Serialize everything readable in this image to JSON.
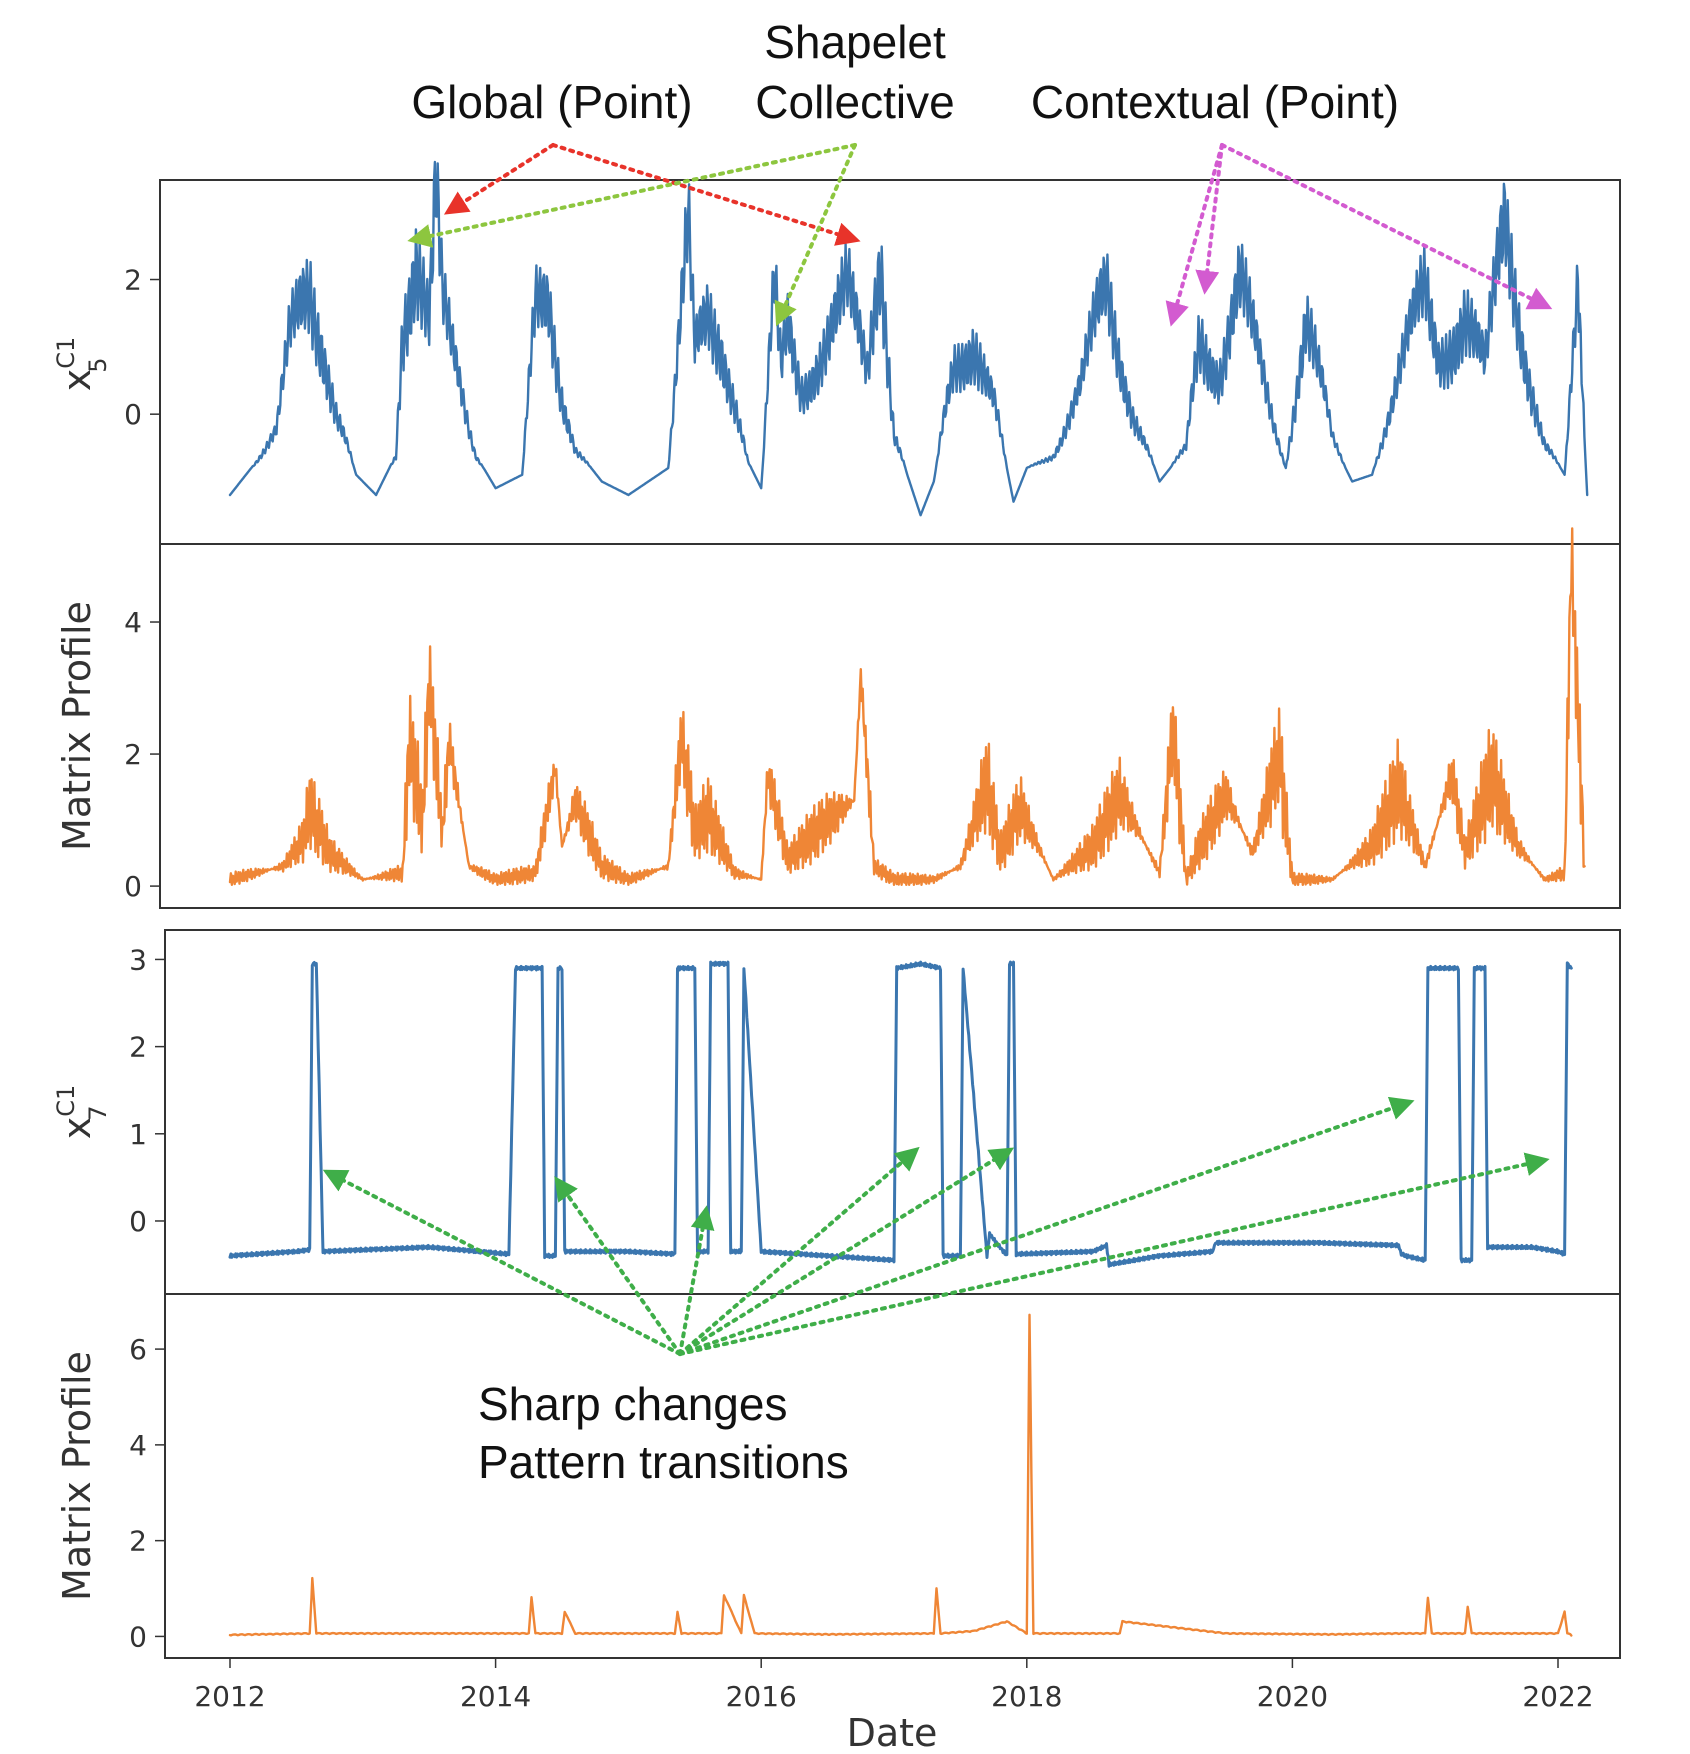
{
  "chart_data": [
    {
      "type": "line",
      "panel": "x5",
      "ylabel": "x_5^{C1}",
      "ylabel_base": "x",
      "ylabel_sub": "5",
      "ylabel_sup": "C1",
      "yticks": [
        0,
        2
      ],
      "ylim": [
        -1.75,
        3.3
      ],
      "xlim": [
        2011.35,
        2022.9
      ],
      "color": "#3b76af",
      "grid": false,
      "description": "seasonal oscillating series with spikes",
      "series": [
        {
          "x": [
            2012.0,
            2012.2,
            2012.35,
            2012.45,
            2012.6,
            2012.7,
            2012.8,
            2012.95,
            2013.1,
            2013.25,
            2013.3,
            2013.4,
            2013.5,
            2013.55,
            2013.6,
            2013.7,
            2013.85,
            2014.0,
            2014.2,
            2014.3,
            2014.4,
            2014.5,
            2014.6,
            2014.8,
            2015.0,
            2015.3,
            2015.45,
            2015.5,
            2015.6,
            2015.7,
            2015.8,
            2015.9,
            2016.0,
            2016.1,
            2016.15,
            2016.2,
            2016.3,
            2016.5,
            2016.65,
            2016.8,
            2016.9,
            2017.0,
            2017.1,
            2017.2,
            2017.3,
            2017.45,
            2017.6,
            2017.75,
            2017.9,
            2018.0,
            2018.2,
            2018.4,
            2018.6,
            2018.8,
            2019.0,
            2019.2,
            2019.3,
            2019.45,
            2019.6,
            2019.8,
            2019.95,
            2020.1,
            2020.3,
            2020.45,
            2020.6,
            2020.8,
            2021.0,
            2021.1,
            2021.3,
            2021.45,
            2021.6,
            2021.75,
            2021.9,
            2022.05,
            2022.15,
            2022.22
          ],
          "y": [
            -1.2,
            -0.7,
            -0.3,
            1.0,
            2.0,
            1.2,
            0.1,
            -0.9,
            -1.2,
            -0.6,
            1.6,
            2.6,
            1.3,
            3.0,
            1.4,
            0.6,
            -0.6,
            -1.1,
            -0.9,
            1.4,
            1.7,
            0.4,
            -0.5,
            -1.0,
            -1.2,
            -0.8,
            2.4,
            0.8,
            1.5,
            1.2,
            0.3,
            -0.7,
            -1.1,
            1.7,
            0.6,
            1.4,
            0.5,
            1.1,
            1.6,
            0.6,
            2.7,
            -0.2,
            -0.9,
            -1.5,
            -1.0,
            0.8,
            1.3,
            0.2,
            -1.3,
            -0.8,
            -0.6,
            0.3,
            1.8,
            0.1,
            -1.0,
            -0.5,
            1.4,
            0.7,
            1.8,
            0.3,
            -0.8,
            1.6,
            -0.4,
            -1.0,
            -0.9,
            0.5,
            1.7,
            0.9,
            1.7,
            0.6,
            2.5,
            1.0,
            -0.4,
            -0.9,
            1.5,
            -1.2
          ]
        }
      ]
    },
    {
      "type": "line",
      "panel": "mp1",
      "ylabel": "Matrix Profile",
      "yticks": [
        0,
        2,
        4
      ],
      "ylim": [
        -0.15,
        5.0
      ],
      "xlim": [
        2011.35,
        2022.9
      ],
      "color": "#ef8636",
      "grid": false,
      "description": "matrix profile with peaks",
      "series": [
        {
          "x": [
            2012.0,
            2012.4,
            2012.55,
            2012.6,
            2012.75,
            2013.0,
            2013.3,
            2013.35,
            2013.45,
            2013.5,
            2013.6,
            2013.65,
            2013.8,
            2014.0,
            2014.3,
            2014.45,
            2014.5,
            2014.6,
            2014.8,
            2015.0,
            2015.3,
            2015.4,
            2015.5,
            2015.6,
            2015.8,
            2016.0,
            2016.05,
            2016.2,
            2016.5,
            2016.7,
            2016.75,
            2016.85,
            2017.0,
            2017.3,
            2017.5,
            2017.7,
            2017.8,
            2017.95,
            2018.2,
            2018.5,
            2018.7,
            2019.0,
            2019.1,
            2019.2,
            2019.3,
            2019.5,
            2019.7,
            2019.9,
            2020.0,
            2020.3,
            2020.6,
            2020.8,
            2021.0,
            2021.2,
            2021.3,
            2021.5,
            2021.7,
            2021.9,
            2022.05,
            2022.1,
            2022.2
          ],
          "y": [
            0.1,
            0.3,
            0.7,
            1.2,
            0.5,
            0.1,
            0.2,
            2.2,
            1.0,
            3.1,
            0.8,
            2.2,
            0.3,
            0.1,
            0.2,
            1.8,
            0.6,
            1.3,
            0.3,
            0.1,
            0.3,
            2.3,
            0.8,
            1.1,
            0.2,
            0.1,
            1.7,
            0.4,
            1.0,
            1.3,
            3.2,
            0.3,
            0.1,
            0.1,
            0.3,
            1.6,
            0.5,
            1.2,
            0.1,
            0.6,
            1.4,
            0.2,
            2.4,
            0.1,
            0.6,
            1.4,
            0.5,
            2.0,
            0.1,
            0.1,
            0.6,
            1.5,
            0.3,
            1.7,
            0.5,
            1.7,
            0.6,
            0.1,
            0.2,
            5.0,
            0.3
          ]
        }
      ]
    },
    {
      "type": "line",
      "panel": "x7",
      "ylabel": "x_7^{C1}",
      "ylabel_base": "x",
      "ylabel_sub": "7",
      "ylabel_sup": "C1",
      "yticks": [
        0,
        1,
        2,
        3
      ],
      "ylim": [
        -0.7,
        3.2
      ],
      "xlim": [
        2011.35,
        2022.9
      ],
      "color": "#3b76af",
      "grid": false,
      "description": "series with level shifts between ~-0.4 and ~2.9",
      "series": [
        {
          "x": [
            2012.0,
            2012.5,
            2012.6,
            2012.62,
            2012.65,
            2012.7,
            2013.5,
            2014.1,
            2014.15,
            2014.2,
            2014.35,
            2014.37,
            2014.45,
            2014.47,
            2014.5,
            2014.52,
            2015.0,
            2015.35,
            2015.37,
            2015.5,
            2015.52,
            2015.6,
            2015.62,
            2015.75,
            2015.77,
            2015.85,
            2015.87,
            2016.0,
            2016.5,
            2017.0,
            2017.02,
            2017.2,
            2017.35,
            2017.37,
            2017.5,
            2017.52,
            2017.7,
            2017.72,
            2017.85,
            2017.87,
            2017.9,
            2017.92,
            2018.5,
            2018.6,
            2018.62,
            2019.0,
            2019.4,
            2019.42,
            2020.2,
            2020.8,
            2020.82,
            2020.85,
            2021.0,
            2021.02,
            2021.25,
            2021.27,
            2021.35,
            2021.37,
            2021.45,
            2021.47,
            2021.8,
            2022.0,
            2022.05,
            2022.07,
            2022.1
          ],
          "y": [
            -0.4,
            -0.35,
            -0.33,
            2.95,
            2.95,
            -0.35,
            -0.3,
            -0.38,
            2.9,
            2.9,
            2.9,
            -0.4,
            -0.4,
            2.9,
            2.9,
            -0.35,
            -0.35,
            -0.38,
            2.9,
            2.9,
            -0.35,
            -0.35,
            2.95,
            2.95,
            -0.35,
            -0.35,
            2.9,
            -0.35,
            -0.4,
            -0.45,
            2.9,
            2.95,
            2.9,
            -0.4,
            -0.4,
            2.9,
            -0.4,
            -0.15,
            -0.4,
            2.95,
            2.95,
            -0.38,
            -0.35,
            -0.28,
            -0.5,
            -0.4,
            -0.35,
            -0.25,
            -0.25,
            -0.28,
            -0.38,
            -0.4,
            -0.45,
            2.9,
            2.9,
            -0.45,
            -0.45,
            2.9,
            2.9,
            -0.3,
            -0.3,
            -0.35,
            -0.38,
            2.95,
            2.9
          ]
        }
      ]
    },
    {
      "type": "line",
      "panel": "mp2",
      "ylabel": "Matrix Profile",
      "yticks": [
        0,
        2,
        4,
        6
      ],
      "ylim": [
        -0.2,
        6.9
      ],
      "xlim": [
        2011.35,
        2022.9
      ],
      "xticks": [
        "2012",
        "2014",
        "2016",
        "2018",
        "2020",
        "2022"
      ],
      "xtick_values": [
        2012,
        2014,
        2016,
        2018,
        2020,
        2022
      ],
      "xlabel": "Date",
      "color": "#ef8636",
      "grid": false,
      "description": "mostly near zero with one large spike",
      "series": [
        {
          "x": [
            2012.0,
            2012.6,
            2012.62,
            2012.65,
            2013.5,
            2014.25,
            2014.27,
            2014.3,
            2014.5,
            2014.52,
            2014.6,
            2015.35,
            2015.37,
            2015.4,
            2015.7,
            2015.72,
            2015.85,
            2015.87,
            2015.95,
            2016.5,
            2017.3,
            2017.32,
            2017.35,
            2017.6,
            2017.85,
            2018.0,
            2018.02,
            2018.05,
            2018.7,
            2018.72,
            2019.5,
            2020.3,
            2020.8,
            2021.0,
            2021.02,
            2021.05,
            2021.3,
            2021.32,
            2021.35,
            2022.0,
            2022.05,
            2022.07,
            2022.1
          ],
          "y": [
            0.02,
            0.05,
            1.2,
            0.05,
            0.05,
            0.05,
            0.8,
            0.05,
            0.05,
            0.5,
            0.05,
            0.05,
            0.5,
            0.05,
            0.05,
            0.85,
            0.05,
            0.85,
            0.05,
            0.03,
            0.05,
            1.0,
            0.05,
            0.1,
            0.3,
            0.05,
            6.7,
            0.05,
            0.05,
            0.3,
            0.05,
            0.03,
            0.05,
            0.05,
            0.8,
            0.05,
            0.05,
            0.6,
            0.05,
            0.05,
            0.5,
            0.05,
            0.02
          ]
        }
      ]
    }
  ],
  "annotations": {
    "shapelet_title": "Shapelet",
    "collective": "Collective",
    "global_point": "Global (Point)",
    "contextual_point": "Contextual (Point)",
    "sharp_changes": "Sharp changes",
    "pattern_transitions": "Pattern transitions",
    "colors": {
      "global": "#e8332a",
      "collective": "#8dc63f",
      "contextual": "#d35bd0",
      "transitions": "#3fae49"
    }
  }
}
